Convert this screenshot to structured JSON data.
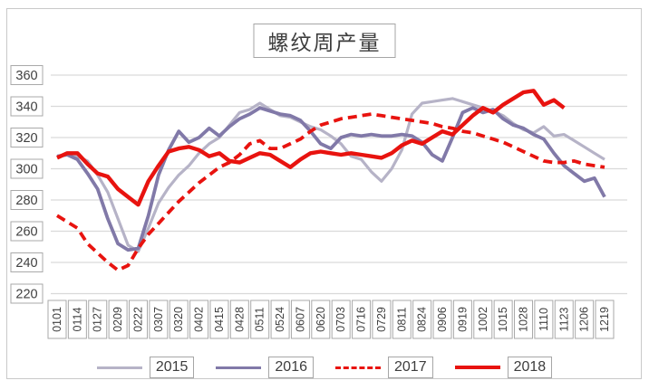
{
  "title": "螺纹周产量",
  "colors": {
    "gridline": "#d9d9d9",
    "tick_box_border": "#a9a9a9",
    "tick_text": "#404040",
    "frame_border": "#c9c9c9",
    "series_2015": "#b6b3c7",
    "series_2016": "#8179a8",
    "series_red": "#e8130f"
  },
  "chart_data": {
    "type": "line",
    "title": "螺纹周产量",
    "xlabel": "",
    "ylabel": "",
    "ylim": [
      220,
      360
    ],
    "ytick_step": 20,
    "grid": "horizontal",
    "legend_position": "bottom",
    "x_resolution": "weekly (2 points per tick label)",
    "categories": [
      "0101",
      "0114",
      "0127",
      "0209",
      "0222",
      "0307",
      "0320",
      "0402",
      "0415",
      "0428",
      "0511",
      "0524",
      "0607",
      "0620",
      "0703",
      "0716",
      "0729",
      "0811",
      "0824",
      "0906",
      "0919",
      "1002",
      "1015",
      "1028",
      "1110",
      "1123",
      "1206",
      "1219"
    ],
    "series": [
      {
        "name": "2015",
        "color": "#b6b3c7",
        "line_style": "solid",
        "line_width": 3.2,
        "values": [
          308,
          309,
          308,
          305,
          296,
          285,
          268,
          251,
          247,
          262,
          278,
          288,
          296,
          302,
          310,
          316,
          320,
          328,
          336,
          338,
          342,
          338,
          334,
          333,
          330,
          327,
          325,
          321,
          316,
          308,
          306,
          298,
          292,
          300,
          312,
          335,
          342,
          343,
          344,
          345,
          343,
          341,
          339,
          337,
          334,
          329,
          325,
          323,
          327,
          321,
          322,
          318,
          314,
          310,
          306
        ]
      },
      {
        "name": "2016",
        "color": "#8179a8",
        "line_style": "solid",
        "line_width": 3.8,
        "values": [
          308,
          309,
          306,
          297,
          287,
          268,
          252,
          248,
          249,
          270,
          296,
          312,
          324,
          317,
          320,
          326,
          321,
          327,
          332,
          335,
          339,
          337,
          335,
          334,
          331,
          324,
          316,
          313,
          320,
          322,
          321,
          322,
          321,
          321,
          322,
          321,
          317,
          309,
          305,
          320,
          336,
          339,
          336,
          338,
          332,
          328,
          326,
          322,
          319,
          310,
          302,
          297,
          292,
          294,
          282
        ]
      },
      {
        "name": "2017",
        "color": "#e8130f",
        "line_style": "dashed",
        "line_width": 3.8,
        "values": [
          270,
          266,
          262,
          252,
          246,
          240,
          235,
          238,
          249,
          258,
          265,
          272,
          279,
          285,
          291,
          296,
          301,
          304,
          309,
          316,
          318,
          313,
          313,
          316,
          319,
          324,
          328,
          330,
          332,
          333,
          334,
          335,
          334,
          333,
          332,
          331,
          330,
          329,
          327,
          326,
          324,
          323,
          321,
          319,
          317,
          314,
          311,
          308,
          305,
          304,
          304,
          305,
          303,
          302,
          301
        ]
      },
      {
        "name": "2018",
        "color": "#e8130f",
        "line_style": "solid",
        "line_width": 4.4,
        "values": [
          307,
          310,
          310,
          303,
          297,
          295,
          287,
          282,
          277,
          292,
          302,
          311,
          313,
          314,
          312,
          308,
          310,
          305,
          304,
          307,
          310,
          309,
          305,
          301,
          306,
          310,
          311,
          310,
          309,
          310,
          309,
          308,
          307,
          310,
          315,
          318,
          316,
          320,
          324,
          322,
          328,
          334,
          339,
          336,
          341,
          345,
          349,
          350,
          341,
          344,
          339
        ]
      }
    ]
  }
}
